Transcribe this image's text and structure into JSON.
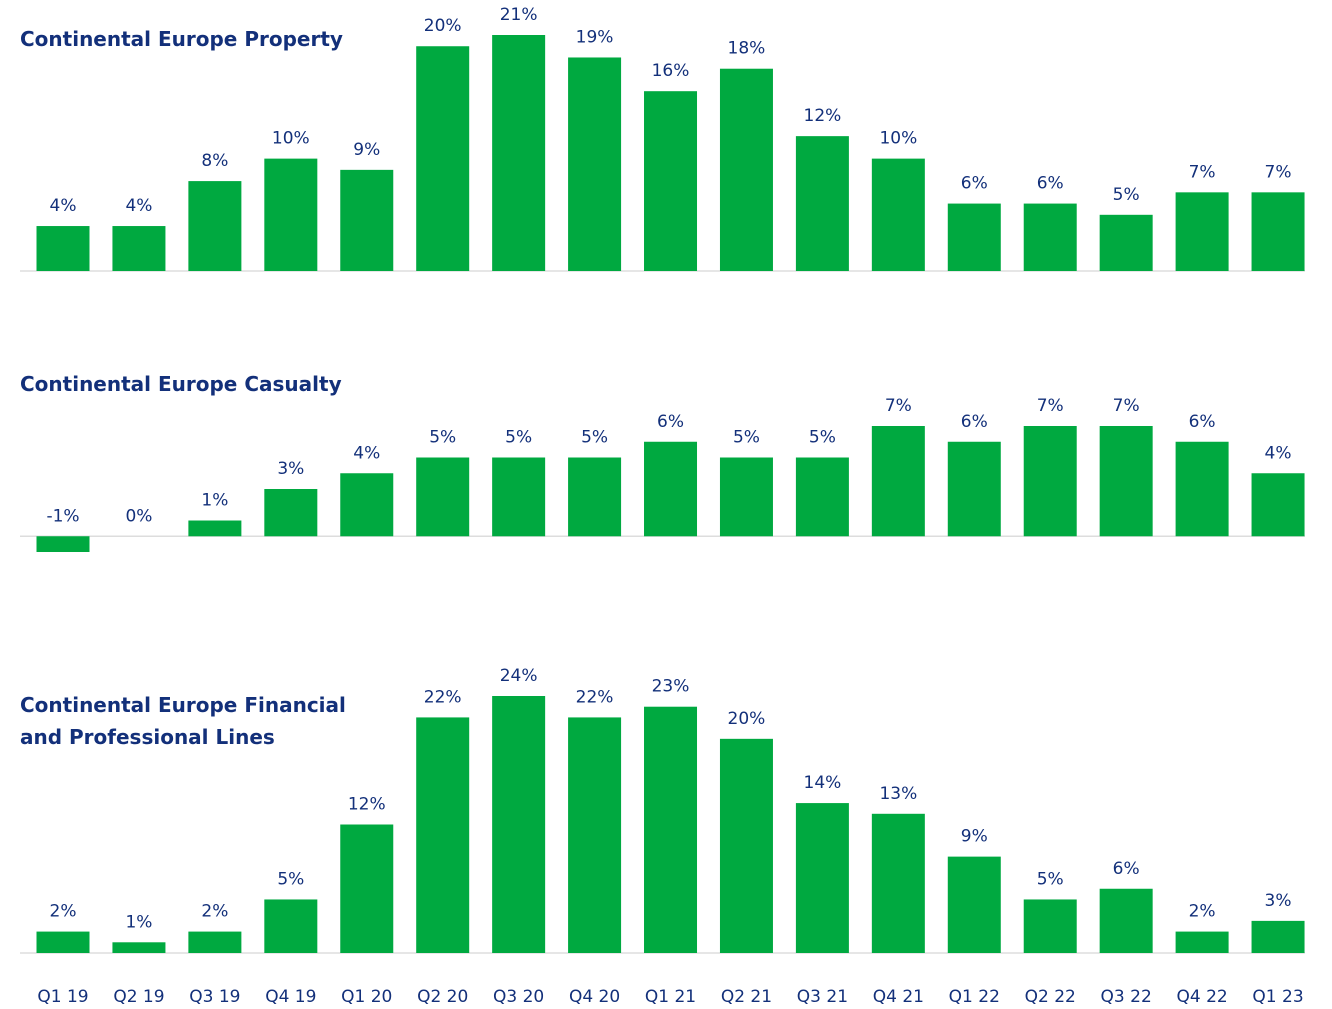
{
  "chart_data": [
    {
      "type": "bar",
      "title": "Continental Europe Property",
      "color": "#00a940",
      "ylim": [
        0,
        21
      ],
      "values": [
        4,
        4,
        8,
        10,
        9,
        20,
        21,
        19,
        16,
        18,
        12,
        10,
        6,
        6,
        5,
        7,
        7
      ],
      "value_labels": [
        "4%",
        "4%",
        "8%",
        "10%",
        "9%",
        "20%",
        "21%",
        "19%",
        "16%",
        "18%",
        "12%",
        "10%",
        "6%",
        "6%",
        "5%",
        "7%",
        "7%"
      ]
    },
    {
      "type": "bar",
      "title": "Continental Europe Casualty",
      "color": "#00a940",
      "ylim": [
        -1,
        7
      ],
      "values": [
        -1,
        0,
        1,
        3,
        4,
        5,
        5,
        5,
        6,
        5,
        5,
        7,
        6,
        7,
        7,
        6,
        4
      ],
      "value_labels": [
        "-1%",
        "0%",
        "1%",
        "3%",
        "4%",
        "5%",
        "5%",
        "5%",
        "6%",
        "5%",
        "5%",
        "7%",
        "6%",
        "7%",
        "7%",
        "6%",
        "4%"
      ]
    },
    {
      "type": "bar",
      "title": "Continental Europe Financial and Professional Lines",
      "color": "#00a940",
      "ylim": [
        0,
        24
      ],
      "categories": [
        "Q1 19",
        "Q2 19",
        "Q3 19",
        "Q4 19",
        "Q1 20",
        "Q2 20",
        "Q3 20",
        "Q4 20",
        "Q1 21",
        "Q2 21",
        "Q3 21",
        "Q4 21",
        "Q1 22",
        "Q2 22",
        "Q3 22",
        "Q4 22",
        "Q1 23"
      ],
      "values": [
        2,
        1,
        2,
        5,
        12,
        22,
        24,
        22,
        23,
        20,
        14,
        13,
        9,
        5,
        6,
        2,
        3
      ],
      "value_labels": [
        "2%",
        "1%",
        "2%",
        "5%",
        "12%",
        "22%",
        "24%",
        "22%",
        "23%",
        "20%",
        "14%",
        "13%",
        "9%",
        "5%",
        "6%",
        "2%",
        "3%"
      ]
    }
  ]
}
